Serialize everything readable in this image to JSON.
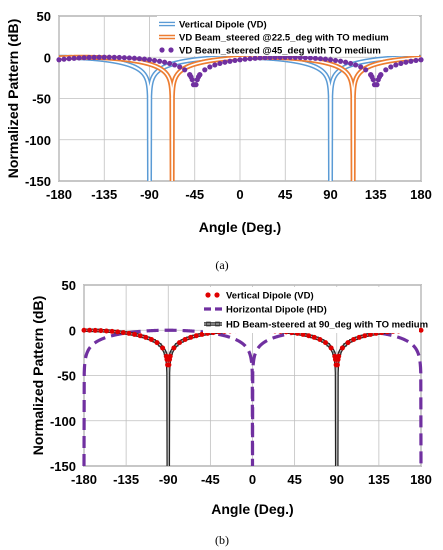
{
  "chart_data": [
    {
      "type": "line",
      "panel_label": "(a)",
      "xlabel": "Angle (Deg.)",
      "ylabel": "Normalized Pattern (dB)",
      "xlim": [
        -180,
        180
      ],
      "ylim": [
        -150,
        50
      ],
      "xticks": [
        -180,
        -135,
        -90,
        -45,
        0,
        45,
        90,
        135,
        180
      ],
      "yticks": [
        -150,
        -100,
        -50,
        0,
        50
      ],
      "grid": true,
      "legend_position": "top-right",
      "colors": {
        "vd": "#5b9bd5",
        "steer22": "#ed7d31",
        "steer45": "#7030a0"
      },
      "series": [
        {
          "name": "Vertical Dipole (VD)",
          "style": "double-line",
          "null_deg": [
            -90,
            90
          ],
          "peak_deg": [
            -180,
            0,
            180
          ],
          "peak_db": 0
        },
        {
          "name": "VD Beam_steered @22.5_deg with TO medium",
          "style": "double-line",
          "null_deg": [
            -67.5,
            112.5
          ],
          "peak_deg": [
            -157.5,
            22.5
          ],
          "peak_db": 0
        },
        {
          "name": "VD Beam_steered @45_deg with TO medium",
          "style": "dots",
          "null_deg": [
            -45,
            135
          ],
          "peak_deg": [
            -135,
            45
          ],
          "peak_db": 0
        }
      ]
    },
    {
      "type": "line",
      "panel_label": "(b)",
      "xlabel": "Angle (Deg.)",
      "ylabel": "Normalized Pattern (dB)",
      "xlim": [
        -180,
        180
      ],
      "ylim": [
        -150,
        50
      ],
      "xticks": [
        -180,
        -135,
        -90,
        -45,
        0,
        45,
        90,
        135,
        180
      ],
      "yticks": [
        -150,
        -100,
        -50,
        0,
        50
      ],
      "grid": true,
      "legend_position": "top-right",
      "colors": {
        "vd": "#e00000",
        "hd": "#7030a0",
        "steer90": "#444444"
      },
      "series": [
        {
          "name": "Vertical Dipole (VD)",
          "style": "red-dots",
          "null_deg": [
            -90,
            90
          ],
          "peak_deg": [
            -180,
            0,
            180
          ],
          "peak_db": 0
        },
        {
          "name": "Horizontal Dipole (HD)",
          "style": "dashed",
          "null_deg": [
            -180,
            0,
            180
          ],
          "peak_deg": [
            -90,
            90
          ],
          "peak_db": 0
        },
        {
          "name": "HD Beam-steered at 90_deg with TO medium",
          "style": "black-line-markers",
          "null_deg": [
            -90,
            90
          ],
          "peak_deg": [
            -180,
            0,
            180
          ],
          "peak_db": 0
        }
      ]
    }
  ]
}
